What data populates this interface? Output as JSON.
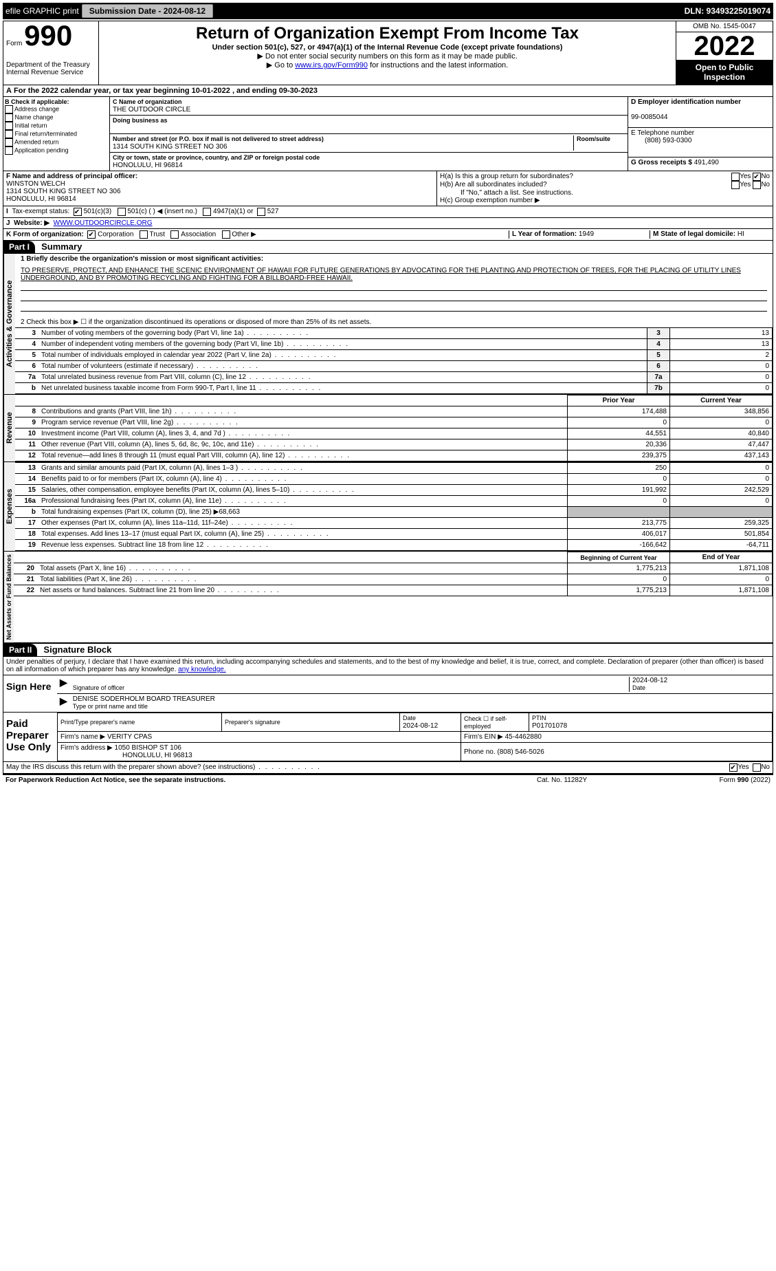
{
  "topbar": {
    "efile": "efile GRAPHIC print",
    "submission_label": "Submission Date - 2024-08-12",
    "dln_label": "DLN: 93493225019074"
  },
  "header": {
    "form_word": "Form",
    "form_number": "990",
    "dept": "Department of the Treasury",
    "irs": "Internal Revenue Service",
    "title": "Return of Organization Exempt From Income Tax",
    "sub": "Under section 501(c), 527, or 4947(a)(1) of the Internal Revenue Code (except private foundations)",
    "note1": "▶ Do not enter social security numbers on this form as it may be made public.",
    "note2_pre": "▶ Go to ",
    "note2_link": "www.irs.gov/Form990",
    "note2_post": " for instructions and the latest information.",
    "omb": "OMB No. 1545-0047",
    "year": "2022",
    "open": "Open to Public Inspection"
  },
  "lineA": "For the 2022 calendar year, or tax year beginning 10-01-2022    , and ending 09-30-2023",
  "boxB": {
    "title": "B Check if applicable:",
    "items": [
      "Address change",
      "Name change",
      "Initial return",
      "Final return/terminated",
      "Amended return",
      "Application pending"
    ]
  },
  "boxC": {
    "name_label": "C Name of organization",
    "name": "THE OUTDOOR CIRCLE",
    "dba_label": "Doing business as",
    "addr_label": "Number and street (or P.O. box if mail is not delivered to street address)",
    "room_label": "Room/suite",
    "addr": "1314 SOUTH KING STREET NO 306",
    "city_label": "City or town, state or province, country, and ZIP or foreign postal code",
    "city": "HONOLULU, HI  96814"
  },
  "boxD": {
    "label": "D Employer identification number",
    "value": "99-0085044"
  },
  "boxE": {
    "label": "E Telephone number",
    "value": "(808) 593-0300"
  },
  "boxG": {
    "label": "G Gross receipts $",
    "value": "491,490"
  },
  "boxF": {
    "label": "F  Name and address of principal officer:",
    "name": "WINSTON WELCH",
    "addr1": "1314 SOUTH KING STREET NO 306",
    "addr2": "HONOLULU, HI  96814"
  },
  "boxH": {
    "a_label": "H(a)  Is this a group return for subordinates?",
    "a_yes": "Yes",
    "a_no": "No",
    "b_label": "H(b)  Are all subordinates included?",
    "b_note": "If \"No,\" attach a list. See instructions.",
    "c_label": "H(c)  Group exemption number ▶"
  },
  "boxI": {
    "label": "Tax-exempt status:",
    "opt1": "501(c)(3)",
    "opt2": "501(c) (  ) ◀ (insert no.)",
    "opt3": "4947(a)(1) or",
    "opt4": "527"
  },
  "boxJ": {
    "label": "Website: ▶",
    "value": "WWW.OUTDOORCIRCLE.ORG"
  },
  "boxK": {
    "label": "K Form of organization:",
    "opts": [
      "Corporation",
      "Trust",
      "Association",
      "Other ▶"
    ]
  },
  "boxL": {
    "label": "L Year of formation:",
    "value": "1949"
  },
  "boxM": {
    "label": "M State of legal domicile:",
    "value": "HI"
  },
  "part1": {
    "header": "Part I",
    "title": "Summary",
    "line1_label": "1  Briefly describe the organization's mission or most significant activities:",
    "mission": "TO PRESERVE, PROTECT, AND ENHANCE THE SCENIC ENVIRONMENT OF HAWAII FOR FUTURE GENERATIONS BY ADVOCATING FOR THE PLANTING AND PROTECTION OF TREES, FOR THE PLACING OF UTILITY LINES UNDERGROUND, AND BY PROMOTING RECYCLING AND FIGHTING FOR A BILLBOARD-FREE HAWAII.",
    "line2": "2   Check this box ▶ ☐  if the organization discontinued its operations or disposed of more than 25% of its net assets.",
    "gov_rows": [
      {
        "n": "3",
        "desc": "Number of voting members of the governing body (Part VI, line 1a)",
        "box": "3",
        "val": "13"
      },
      {
        "n": "4",
        "desc": "Number of independent voting members of the governing body (Part VI, line 1b)",
        "box": "4",
        "val": "13"
      },
      {
        "n": "5",
        "desc": "Total number of individuals employed in calendar year 2022 (Part V, line 2a)",
        "box": "5",
        "val": "2"
      },
      {
        "n": "6",
        "desc": "Total number of volunteers (estimate if necessary)",
        "box": "6",
        "val": "0"
      },
      {
        "n": "7a",
        "desc": "Total unrelated business revenue from Part VIII, column (C), line 12",
        "box": "7a",
        "val": "0"
      },
      {
        "n": "b",
        "desc": "Net unrelated business taxable income from Form 990-T, Part I, line 11",
        "box": "7b",
        "val": "0"
      }
    ],
    "col_prior": "Prior Year",
    "col_curr": "Current Year",
    "revenue_rows": [
      {
        "n": "8",
        "desc": "Contributions and grants (Part VIII, line 1h)",
        "prior": "174,488",
        "curr": "348,856"
      },
      {
        "n": "9",
        "desc": "Program service revenue (Part VIII, line 2g)",
        "prior": "0",
        "curr": "0"
      },
      {
        "n": "10",
        "desc": "Investment income (Part VIII, column (A), lines 3, 4, and 7d )",
        "prior": "44,551",
        "curr": "40,840"
      },
      {
        "n": "11",
        "desc": "Other revenue (Part VIII, column (A), lines 5, 6d, 8c, 9c, 10c, and 11e)",
        "prior": "20,336",
        "curr": "47,447"
      },
      {
        "n": "12",
        "desc": "Total revenue—add lines 8 through 11 (must equal Part VIII, column (A), line 12)",
        "prior": "239,375",
        "curr": "437,143"
      }
    ],
    "expense_rows": [
      {
        "n": "13",
        "desc": "Grants and similar amounts paid (Part IX, column (A), lines 1–3 )",
        "prior": "250",
        "curr": "0"
      },
      {
        "n": "14",
        "desc": "Benefits paid to or for members (Part IX, column (A), line 4)",
        "prior": "0",
        "curr": "0"
      },
      {
        "n": "15",
        "desc": "Salaries, other compensation, employee benefits (Part IX, column (A), lines 5–10)",
        "prior": "191,992",
        "curr": "242,529"
      },
      {
        "n": "16a",
        "desc": "Professional fundraising fees (Part IX, column (A), line 11e)",
        "prior": "0",
        "curr": "0"
      },
      {
        "n": "b",
        "desc": "Total fundraising expenses (Part IX, column (D), line 25) ▶68,663",
        "prior": "",
        "curr": "",
        "shade": true
      },
      {
        "n": "17",
        "desc": "Other expenses (Part IX, column (A), lines 11a–11d, 11f–24e)",
        "prior": "213,775",
        "curr": "259,325"
      },
      {
        "n": "18",
        "desc": "Total expenses. Add lines 13–17 (must equal Part IX, column (A), line 25)",
        "prior": "406,017",
        "curr": "501,854"
      },
      {
        "n": "19",
        "desc": "Revenue less expenses. Subtract line 18 from line 12",
        "prior": "-166,642",
        "curr": "-64,711"
      }
    ],
    "col_begin": "Beginning of Current Year",
    "col_end": "End of Year",
    "net_rows": [
      {
        "n": "20",
        "desc": "Total assets (Part X, line 16)",
        "prior": "1,775,213",
        "curr": "1,871,108"
      },
      {
        "n": "21",
        "desc": "Total liabilities (Part X, line 26)",
        "prior": "0",
        "curr": "0"
      },
      {
        "n": "22",
        "desc": "Net assets or fund balances. Subtract line 21 from line 20",
        "prior": "1,775,213",
        "curr": "1,871,108"
      }
    ],
    "vlabels": {
      "gov": "Activities & Governance",
      "rev": "Revenue",
      "exp": "Expenses",
      "net": "Net Assets or Fund Balances"
    }
  },
  "part2": {
    "header": "Part II",
    "title": "Signature Block",
    "decl": "Under penalties of perjury, I declare that I have examined this return, including accompanying schedules and statements, and to the best of my knowledge and belief, it is true, correct, and complete. Declaration of preparer (other than officer) is based on all information of which preparer has any knowledge."
  },
  "sign": {
    "here": "Sign Here",
    "sig_officer": "Signature of officer",
    "date": "Date",
    "date_val": "2024-08-12",
    "name": "DENISE SODERHOLM  BOARD TREASURER",
    "name_label": "Type or print name and title"
  },
  "preparer": {
    "label": "Paid Preparer Use Only",
    "col1": "Print/Type preparer's name",
    "col2": "Preparer's signature",
    "col3_label": "Date",
    "col3": "2024-08-12",
    "col4_label": "Check ☐ if self-employed",
    "col5_label": "PTIN",
    "col5": "P01701078",
    "firm_name_label": "Firm's name    ▶",
    "firm_name": "VERITY CPAS",
    "firm_ein_label": "Firm's EIN ▶",
    "firm_ein": "45-4462880",
    "firm_addr_label": "Firm's address ▶",
    "firm_addr1": "1050 BISHOP ST 106",
    "firm_addr2": "HONOLULU, HI  96813",
    "phone_label": "Phone no.",
    "phone": "(808) 546-5026"
  },
  "discuss": {
    "q": "May the IRS discuss this return with the preparer shown above? (see instructions)",
    "yes": "Yes",
    "no": "No"
  },
  "footer": {
    "left": "For Paperwork Reduction Act Notice, see the separate instructions.",
    "mid": "Cat. No. 11282Y",
    "right": "Form 990 (2022)"
  }
}
